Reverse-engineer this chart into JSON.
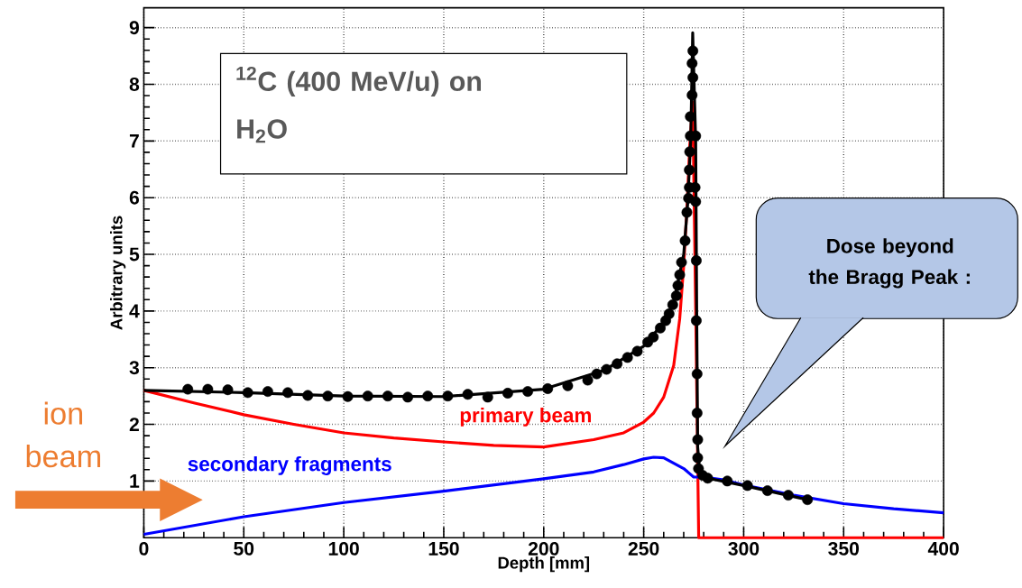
{
  "chart_data": {
    "type": "line",
    "xlabel": "Depth [mm]",
    "ylabel": "Arbitrary units",
    "xlim": [
      0,
      400
    ],
    "ylim": [
      0,
      9.35
    ],
    "xticks": [
      0,
      50,
      100,
      150,
      200,
      250,
      300,
      350,
      400
    ],
    "yticks": [
      1,
      2,
      3,
      4,
      5,
      6,
      7,
      8,
      9
    ],
    "grid": true,
    "annotations": [
      "$^{12}$C  (400 MeV/u) on H$_{2}$O",
      "ion beam",
      "Dose beyond  the Bragg Peak :"
    ],
    "series": [
      {
        "color": "#ff0000",
        "name": "primary beam",
        "x": [
          0,
          25,
          50,
          75,
          100,
          125,
          150,
          175,
          200,
          225,
          240,
          250,
          255,
          260,
          265,
          268,
          270,
          271.5,
          273,
          274.5,
          276,
          277.5,
          400
        ],
        "values": [
          2.6,
          2.38,
          2.17,
          2.0,
          1.85,
          1.76,
          1.69,
          1.63,
          1.6,
          1.73,
          1.85,
          2.04,
          2.2,
          2.48,
          3.04,
          3.86,
          4.8,
          5.74,
          6.9,
          7.69,
          4.0,
          0,
          0
        ]
      },
      {
        "color": "#0000ff",
        "name": "secondary fragments",
        "x": [
          0,
          50,
          100,
          150,
          200,
          225,
          240,
          250,
          255,
          260,
          270,
          275,
          280,
          290,
          300,
          325,
          350,
          375,
          400
        ],
        "values": [
          0.06,
          0.37,
          0.62,
          0.82,
          1.04,
          1.16,
          1.29,
          1.39,
          1.42,
          1.41,
          1.22,
          1.07,
          1.07,
          1.02,
          0.93,
          0.75,
          0.6,
          0.51,
          0.44
        ]
      },
      {
        "color": "#000000",
        "x": [
          0,
          50,
          100,
          150,
          200,
          230,
          250,
          260,
          265,
          270,
          272,
          273.5,
          274.5,
          276,
          276.5,
          277,
          278,
          282,
          300,
          332
        ],
        "values": [
          2.6,
          2.56,
          2.5,
          2.49,
          2.62,
          2.95,
          3.38,
          3.8,
          4.15,
          5.0,
          5.9,
          7.0,
          8.91,
          7.0,
          4.0,
          1.6,
          1.15,
          1.05,
          0.92,
          0.67
        ]
      },
      {
        "type": "scatter",
        "color": "#000000",
        "marker": "circle",
        "x": [
          22,
          32,
          42,
          52,
          62,
          72,
          82,
          92,
          102,
          112,
          122,
          132,
          142,
          152,
          162,
          172,
          182,
          192,
          202,
          212,
          222,
          226.5,
          231.4,
          236.7,
          241.9,
          246.8,
          252,
          254.8,
          258.3,
          261,
          262.7,
          264.5,
          266.3,
          267.1,
          268,
          268.9,
          270.7,
          271.6,
          272.4,
          272.8,
          272.8,
          273,
          273.3,
          273.3,
          274.2,
          274.6,
          274.2,
          274.6,
          276,
          275.7,
          276,
          276.3,
          276.3,
          276.7,
          276.7,
          277,
          277,
          277.4,
          279.5,
          282,
          291.8,
          301.9,
          311.9,
          322.3,
          331.9
        ],
        "values": [
          2.62,
          2.62,
          2.61,
          2.56,
          2.58,
          2.56,
          2.51,
          2.5,
          2.49,
          2.5,
          2.5,
          2.48,
          2.5,
          2.5,
          2.53,
          2.48,
          2.55,
          2.58,
          2.63,
          2.68,
          2.78,
          2.89,
          2.97,
          3.07,
          3.18,
          3.29,
          3.45,
          3.54,
          3.7,
          3.83,
          3.95,
          4.11,
          4.27,
          4.45,
          4.64,
          4.86,
          5.24,
          5.74,
          5.99,
          6.18,
          6.49,
          6.81,
          7.09,
          7.43,
          7.81,
          8.12,
          8.37,
          8.59,
          7.09,
          6.18,
          5.93,
          4.89,
          3.83,
          2.89,
          2.2,
          1.73,
          1.41,
          1.22,
          1.1,
          1.05,
          1.0,
          0.92,
          0.83,
          0.75,
          0.67
        ]
      }
    ]
  }
}
